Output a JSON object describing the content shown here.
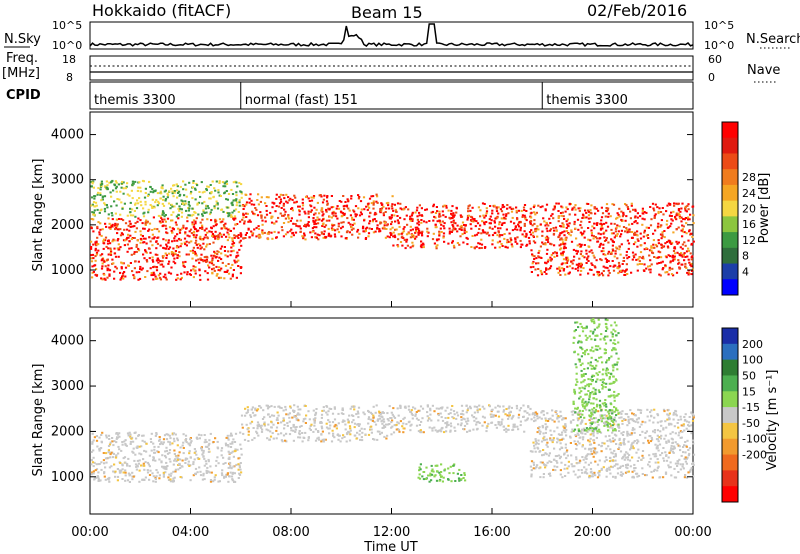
{
  "header": {
    "station": "Hokkaido (fitACF)",
    "beam": "Beam 15",
    "date": "02/Feb/2016"
  },
  "aux_panels": {
    "nsky_label": "N.Sky",
    "nsky_ticks": [
      "10^5",
      "10^0"
    ],
    "nsearch_label": "N.Search",
    "nsearch_ticks": [
      "10^5",
      "10^0"
    ],
    "freq_label": "Freq.",
    "freq_unit": "[MHz]",
    "freq_ticks": [
      "18",
      "8"
    ],
    "nave_label": "Nave",
    "nave_ticks": [
      "60",
      "0"
    ],
    "cpid_label": "CPID",
    "cpid_segments": [
      {
        "label": "themis 3300",
        "start_hour": 0
      },
      {
        "label": "normal (fast) 151",
        "start_hour": 6
      },
      {
        "label": "themis 3300",
        "start_hour": 18
      }
    ]
  },
  "chart_data": [
    {
      "type": "heatmap",
      "name": "power",
      "xlabel": "Time UT",
      "ylabel": "Slant Range [km]",
      "x_range_hours": [
        0,
        24
      ],
      "ylim": [
        180,
        4500
      ],
      "y_ticks": [
        1000,
        2000,
        3000,
        4000
      ],
      "x_ticks": [
        "00:00",
        "04:00",
        "08:00",
        "12:00",
        "16:00",
        "20:00",
        "00:00"
      ],
      "colorbar": {
        "label": "Power [dB]",
        "ticks": [
          "4",
          "8",
          "12",
          "16",
          "20",
          "24",
          "28"
        ],
        "colors": [
          "#0000ff",
          "#1c3ea8",
          "#2f6e3c",
          "#3c9a42",
          "#8cc63f",
          "#f5d742",
          "#f5a623",
          "#f07c1e",
          "#ec4b16",
          "#e01a0f",
          "#ff0000"
        ]
      },
      "echo_bands": [
        {
          "t_start": 0.0,
          "t_end": 6.0,
          "r_low": 800,
          "r_high": 2200,
          "level": "high"
        },
        {
          "t_start": 0.0,
          "t_end": 6.0,
          "r_low": 2200,
          "r_high": 3000,
          "level": "medium"
        },
        {
          "t_start": 6.0,
          "t_end": 12.0,
          "r_low": 1700,
          "r_high": 2700,
          "level": "high"
        },
        {
          "t_start": 12.0,
          "t_end": 17.5,
          "r_low": 1500,
          "r_high": 2500,
          "level": "high"
        },
        {
          "t_start": 17.5,
          "t_end": 24.0,
          "r_low": 900,
          "r_high": 2500,
          "level": "high"
        }
      ]
    },
    {
      "type": "heatmap",
      "name": "velocity",
      "xlabel": "Time UT",
      "ylabel": "Slant Range [km]",
      "x_range_hours": [
        0,
        24
      ],
      "ylim": [
        180,
        4500
      ],
      "y_ticks": [
        1000,
        2000,
        3000,
        4000
      ],
      "x_ticks": [
        "00:00",
        "04:00",
        "08:00",
        "12:00",
        "16:00",
        "20:00",
        "00:00"
      ],
      "colorbar": {
        "label": "Velocity [m s⁻¹]",
        "ticks": [
          "200",
          "100",
          "50",
          "15",
          "-15",
          "-50",
          "-100",
          "-200"
        ],
        "colors": [
          "#1a2ea8",
          "#2b6fbf",
          "#2e7d32",
          "#4caf50",
          "#8bd651",
          "#c8c8c8",
          "#f4c542",
          "#f29a2e",
          "#f06a1e",
          "#e8321a",
          "#ff0000"
        ]
      },
      "echo_bands": [
        {
          "t_start": 0.0,
          "t_end": 6.0,
          "r_low": 900,
          "r_high": 2000,
          "velocity": 0
        },
        {
          "t_start": 6.0,
          "t_end": 12.0,
          "r_low": 1800,
          "r_high": 2600,
          "velocity": 0
        },
        {
          "t_start": 12.0,
          "t_end": 17.5,
          "r_low": 2000,
          "r_high": 2600,
          "velocity": 0
        },
        {
          "t_start": 17.5,
          "t_end": 24.0,
          "r_low": 1000,
          "r_high": 2500,
          "velocity": 0
        },
        {
          "t_start": 19.2,
          "t_end": 21.0,
          "r_low": 2000,
          "r_high": 4500,
          "velocity": 60
        },
        {
          "t_start": 13.0,
          "t_end": 15.0,
          "r_low": 900,
          "r_high": 1300,
          "velocity": 40
        }
      ]
    }
  ]
}
